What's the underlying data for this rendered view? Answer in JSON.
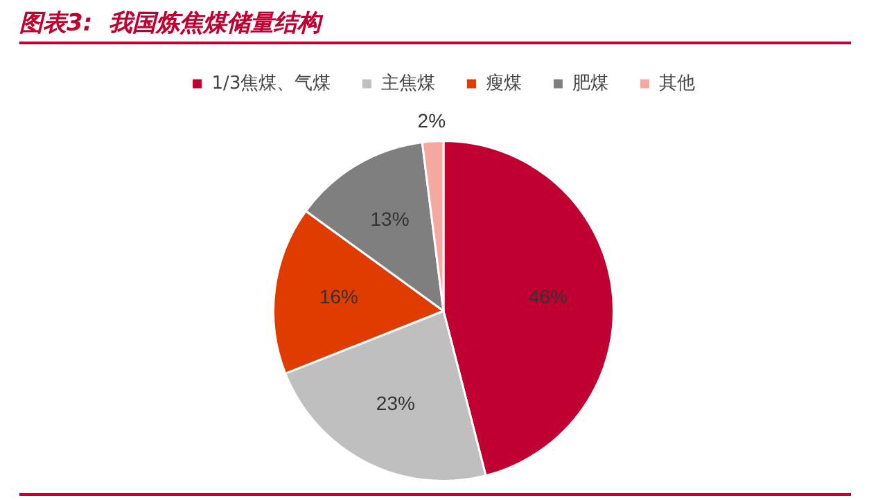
{
  "chart_data": {
    "type": "pie",
    "title": "图表3:  我国炼焦煤储量结构",
    "categories": [
      "1/3焦煤、气煤",
      "主焦煤",
      "瘦煤",
      "肥煤",
      "其他"
    ],
    "values": [
      46,
      23,
      16,
      13,
      2
    ],
    "colors": [
      "#c00030",
      "#bfbfbf",
      "#e03c00",
      "#7f7f7f",
      "#f4a8a0"
    ],
    "value_labels": [
      "46%",
      "23%",
      "16%",
      "13%",
      "2%"
    ],
    "legend": "top"
  }
}
